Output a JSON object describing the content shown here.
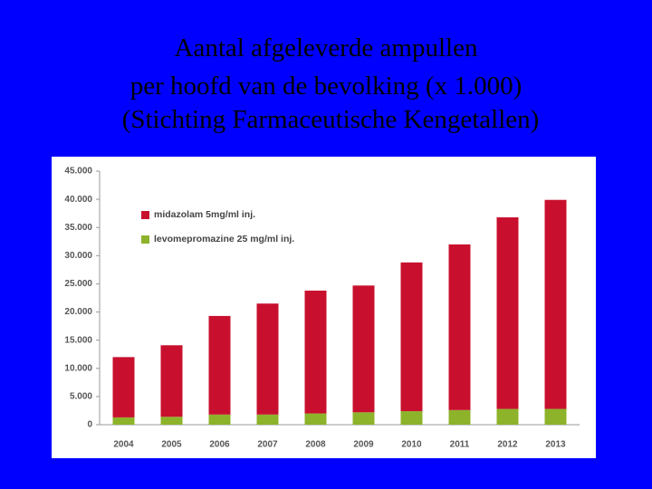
{
  "chart_data": {
    "type": "stacked-bar",
    "title": [
      "Aantal afgeleverde ampullen",
      "per hoofd van de bevolking (x 1.000)",
      "(Stichting Farmaceutische Kengetallen)"
    ],
    "categories": [
      "2004",
      "2005",
      "2006",
      "2007",
      "2008",
      "2009",
      "2010",
      "2011",
      "2012",
      "2013"
    ],
    "series": [
      {
        "name": "midazolam 5mg/ml inj.",
        "color": "#c8102e",
        "values": [
          10700,
          12700,
          17500,
          19700,
          21800,
          22500,
          26400,
          29400,
          34000,
          37100
        ]
      },
      {
        "name": "levomepromazine 25 mg/ml inj.",
        "color": "#8db32b",
        "values": [
          1300,
          1400,
          1800,
          1800,
          2000,
          2200,
          2400,
          2600,
          2800,
          2800
        ]
      }
    ],
    "ylim": [
      0,
      45000
    ],
    "yticks": [
      0,
      {
        "value": 5000,
        "label": "5.000"
      },
      {
        "value": 10000,
        "label": "10.000"
      },
      {
        "value": 15000,
        "label": "15.000"
      },
      {
        "value": 20000,
        "label": "20.000"
      },
      {
        "value": 25000,
        "label": "25.000"
      },
      {
        "value": 30000,
        "label": "30.000"
      },
      {
        "value": 35000,
        "label": "35.000"
      },
      {
        "value": 40000,
        "label": "40.000"
      },
      {
        "value": 45000,
        "label": "45.000"
      }
    ],
    "grid": false,
    "legend": "top-left"
  }
}
